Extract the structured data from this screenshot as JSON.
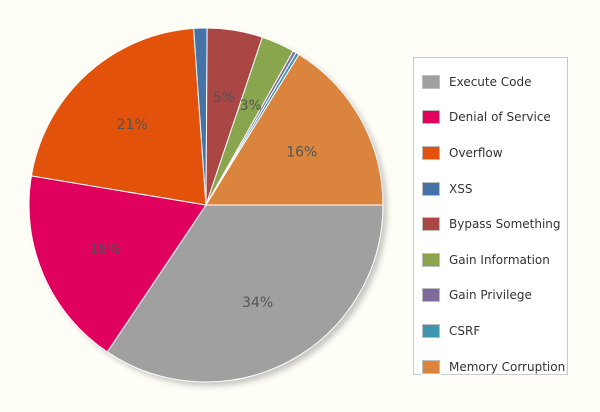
{
  "chart_data": {
    "type": "pie",
    "title": "",
    "legend_position": "right",
    "slices": [
      {
        "name": "Execute Code",
        "value": 34,
        "label": "34%",
        "color": "#a0a0a0"
      },
      {
        "name": "Denial of Service",
        "value": 18,
        "label": "18%",
        "color": "#e0005e"
      },
      {
        "name": "Overflow",
        "value": 21,
        "label": "21%",
        "color": "#e2520a"
      },
      {
        "name": "XSS",
        "value": 1.2,
        "label": "",
        "color": "#4572a7"
      },
      {
        "name": "Bypass Something",
        "value": 5,
        "label": "5%",
        "color": "#aa4643"
      },
      {
        "name": "Gain Information",
        "value": 3,
        "label": "3%",
        "color": "#89a54e"
      },
      {
        "name": "Gain Privilege",
        "value": 0.3,
        "label": "",
        "color": "#80699b"
      },
      {
        "name": "CSRF",
        "value": 0.3,
        "label": "",
        "color": "#3d96ae"
      },
      {
        "name": "Memory Corruption",
        "value": 16,
        "label": "16%",
        "color": "#db843d"
      }
    ]
  }
}
